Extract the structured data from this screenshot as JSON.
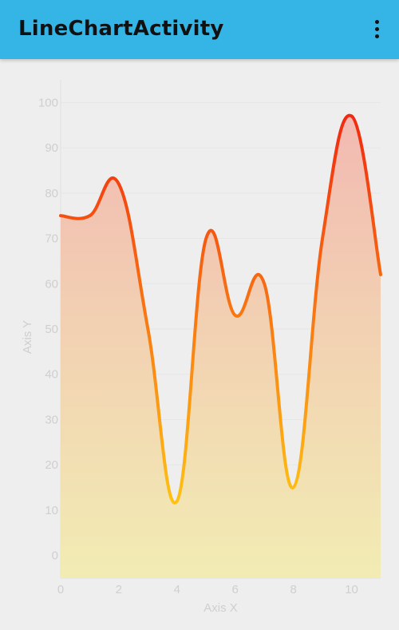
{
  "app": {
    "title": "LineChartActivity",
    "overflow_icon": "more-vert-icon"
  },
  "chart_data": {
    "type": "area",
    "xlabel": "Axis X",
    "ylabel": "Axis Y",
    "xlim": [
      0,
      11
    ],
    "ylim": [
      -5,
      105
    ],
    "xticks": [
      0,
      2,
      4,
      6,
      8,
      10
    ],
    "yticks": [
      0,
      10,
      20,
      30,
      40,
      50,
      60,
      70,
      80,
      90,
      100
    ],
    "grid": true,
    "legend": "none",
    "series": [
      {
        "x": [
          0,
          1,
          2,
          3,
          4,
          5,
          6,
          7,
          8,
          9,
          10,
          11
        ],
        "values": [
          75,
          75,
          82,
          50,
          12,
          70,
          53,
          60,
          15,
          70,
          97,
          62
        ]
      }
    ],
    "colors": {
      "line_top": "#f02410",
      "line_bottom": "#ffc414",
      "fill_top": "#f2b8b2",
      "fill_bottom": "#f2ecb3"
    }
  }
}
